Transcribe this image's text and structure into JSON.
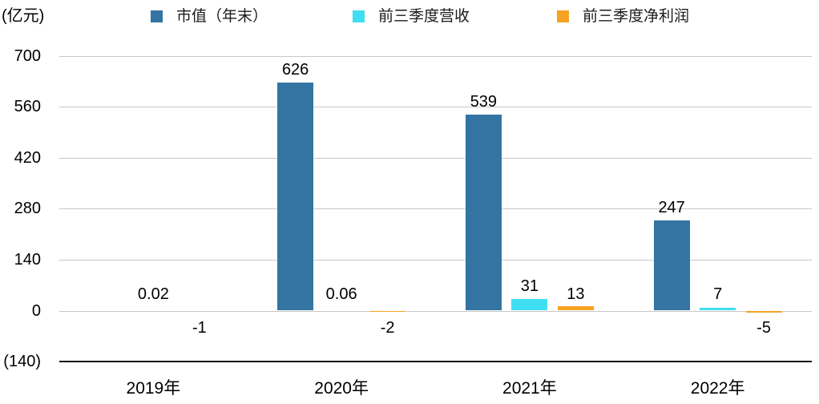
{
  "chart_data": {
    "type": "bar",
    "title": "",
    "ylabel": "(亿元)",
    "xlabel": "",
    "categories": [
      "2019年",
      "2020年",
      "2021年",
      "2022年"
    ],
    "series": [
      {
        "key": "market-value-year-end",
        "name": "市值（年末）",
        "color": "#3374a3",
        "values": [
          null,
          626,
          539,
          247
        ],
        "data_labels": [
          "",
          "626",
          "539",
          "247"
        ]
      },
      {
        "key": "q1-q3-revenue",
        "name": "前三季度营收",
        "color": "#3fdef2",
        "values": [
          0.02,
          0.06,
          31,
          7
        ],
        "data_labels": [
          "0.02",
          "0.06",
          "31",
          "7"
        ]
      },
      {
        "key": "q1-q3-net-profit",
        "name": "前三季度净利润",
        "color": "#f5a323",
        "values": [
          -1,
          -2,
          13,
          -5
        ],
        "data_labels": [
          "-1",
          "-2",
          "13",
          "-5"
        ]
      }
    ],
    "yticks": [
      {
        "value": 700,
        "label": "700"
      },
      {
        "value": 560,
        "label": "560"
      },
      {
        "value": 420,
        "label": "420"
      },
      {
        "value": 280,
        "label": "280"
      },
      {
        "value": 140,
        "label": "140"
      },
      {
        "value": 0,
        "label": "0"
      },
      {
        "value": -140,
        "label": "(140)"
      }
    ],
    "ylim": [
      -140,
      700
    ],
    "grid": true,
    "legend_position": "top",
    "colors": {
      "grid": "#c7c7c7",
      "axis": "#111111",
      "text": "#000000"
    }
  }
}
